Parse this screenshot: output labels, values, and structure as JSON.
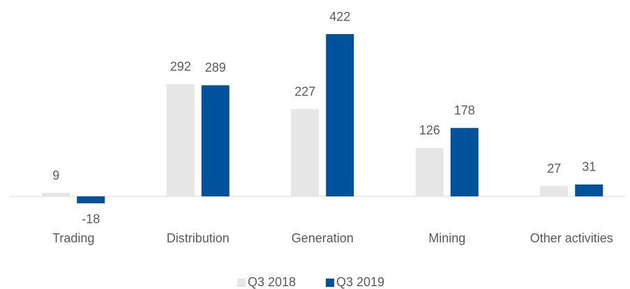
{
  "chart_data": {
    "type": "bar",
    "categories": [
      "Trading",
      "Distribution",
      "Generation",
      "Mining",
      "Other activities"
    ],
    "series": [
      {
        "name": "Q3 2018",
        "color": "#e6e6e6",
        "values": [
          9,
          292,
          227,
          126,
          27
        ]
      },
      {
        "name": "Q3 2019",
        "color": "#00529b",
        "values": [
          -18,
          289,
          422,
          178,
          31
        ]
      }
    ],
    "legend": "bottom"
  }
}
